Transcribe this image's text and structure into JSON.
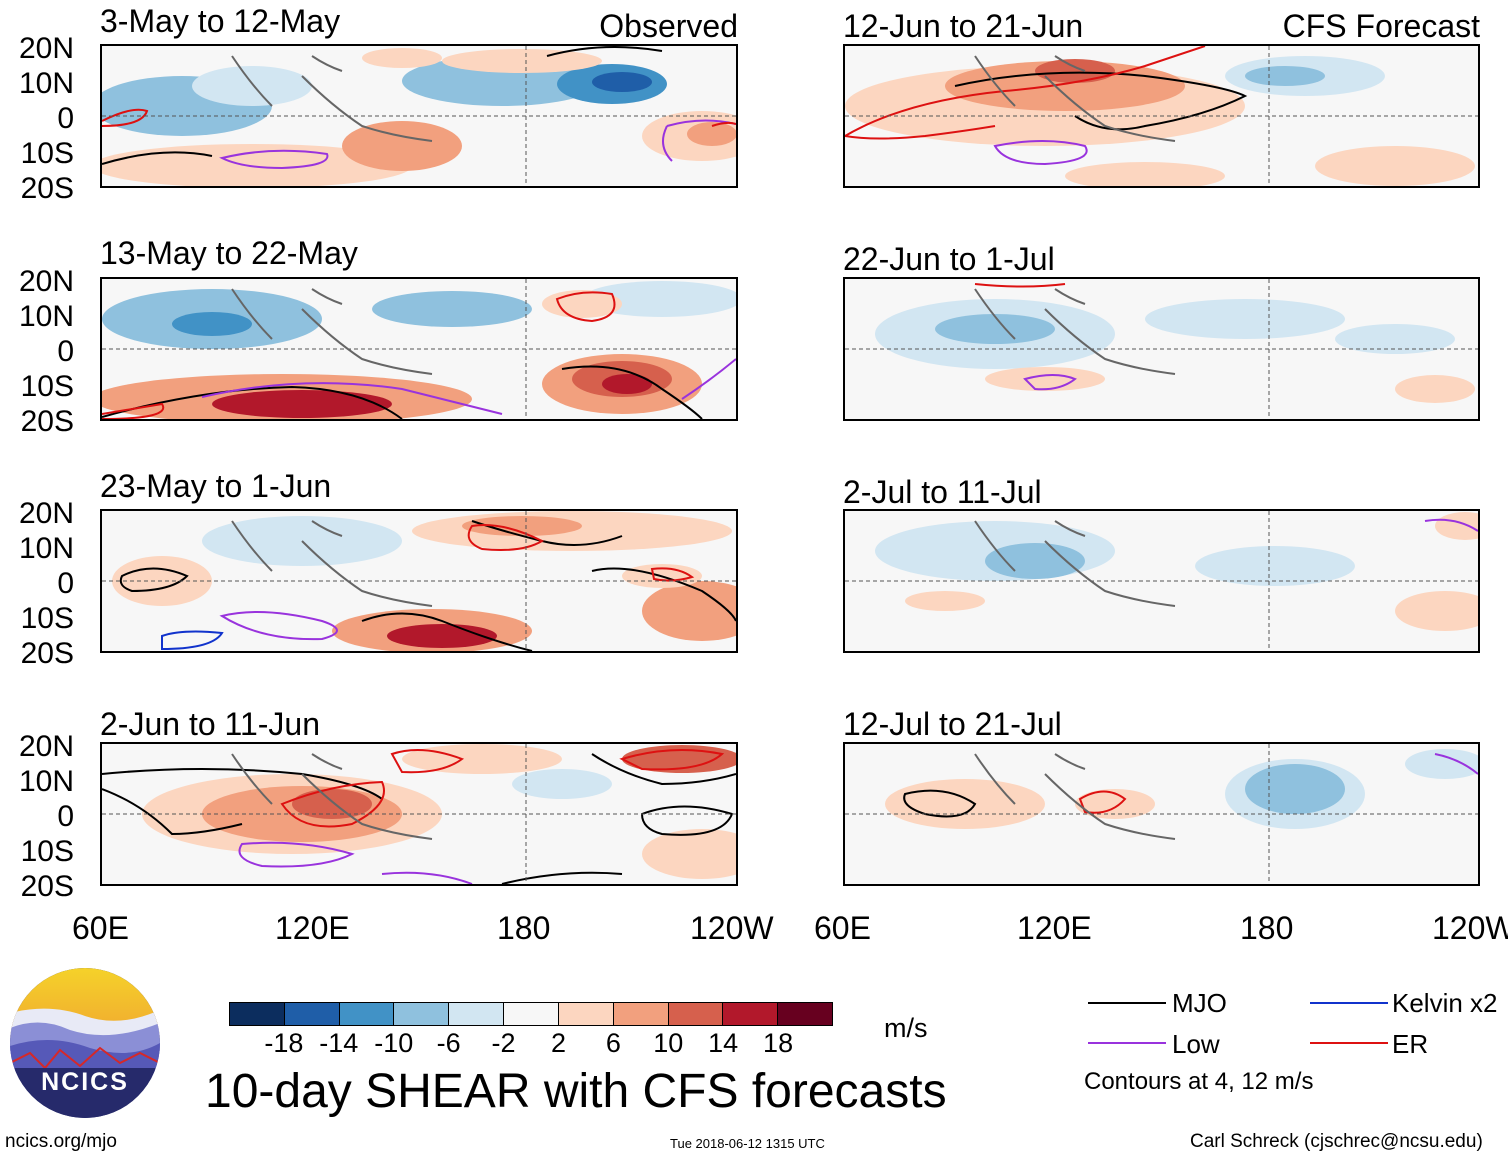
{
  "panels": {
    "p1": {
      "title": "3-May to 12-May",
      "tag": "Observed"
    },
    "p2": {
      "title": "13-May to 22-May"
    },
    "p3": {
      "title": "23-May to 1-Jun"
    },
    "p4": {
      "title": "2-Jun to 11-Jun"
    },
    "p5": {
      "title": "12-Jun to 21-Jun",
      "tag": "CFS Forecast"
    },
    "p6": {
      "title": "22-Jun to 1-Jul"
    },
    "p7": {
      "title": "2-Jul to 11-Jul"
    },
    "p8": {
      "title": "12-Jul to 21-Jul"
    }
  },
  "lat_labels": [
    "20N",
    "10N",
    "0",
    "10S",
    "20S"
  ],
  "lon_labels": [
    "60E",
    "120E",
    "180",
    "120W"
  ],
  "colorbar": {
    "unit": "m/s",
    "ticks": [
      "-18",
      "-14",
      "-10",
      "-6",
      "-2",
      "2",
      "6",
      "10",
      "14",
      "18"
    ],
    "colors": [
      "#0c2d5e",
      "#1f5ea8",
      "#4192c6",
      "#8fc1de",
      "#d2e6f2",
      "#f7f7f7",
      "#fcd6c0",
      "#f2a07e",
      "#d6604d",
      "#b2182b",
      "#67001f"
    ]
  },
  "legend": {
    "mjo": "MJO",
    "low": "Low",
    "kelvin": "Kelvin x2",
    "er": "ER",
    "contours_note": "Contours at 4, 12 m/s",
    "colors": {
      "mjo": "#000000",
      "low": "#9933dd",
      "kelvin": "#1133cc",
      "er": "#dd1111"
    }
  },
  "main_title": "10-day SHEAR with CFS forecasts",
  "logo_text": "NCICS",
  "footer": {
    "url": "ncics.org/mjo",
    "timestamp": "Tue 2018-06-12 1315 UTC",
    "credit": "Carl Schreck (cjschrec@ncsu.edu)"
  }
}
